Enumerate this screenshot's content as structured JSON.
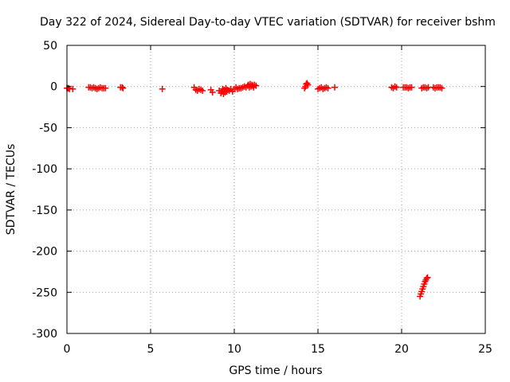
{
  "chart_data": {
    "type": "scatter",
    "title": "Day 322 of 2024, Sidereal Day-to-day VTEC variation (SDTVAR) for receiver bshm",
    "xlabel": "GPS time / hours",
    "ylabel": "SDTVAR / TECUs",
    "xlim": [
      0,
      25
    ],
    "ylim": [
      -300,
      50
    ],
    "xticks": [
      0,
      5,
      10,
      15,
      20,
      25
    ],
    "yticks": [
      50,
      0,
      -50,
      -100,
      -150,
      -200,
      -250,
      -300
    ],
    "xtick_labels": [
      "0",
      "5",
      "10",
      "15",
      "20",
      "25"
    ],
    "ytick_labels": [
      "50",
      "0",
      "-50",
      "-100",
      "-150",
      "-200",
      "-250",
      "-300"
    ],
    "grid": true,
    "marker": "plus",
    "series": [
      {
        "name": "SDTVAR",
        "color": "#ff0000",
        "x": [
          0.0,
          0.05,
          0.1,
          0.15,
          0.35,
          1.3,
          1.4,
          1.5,
          1.6,
          1.7,
          1.8,
          1.9,
          2.0,
          2.1,
          2.2,
          2.3,
          3.2,
          3.3,
          3.35,
          5.7,
          7.6,
          7.7,
          7.8,
          7.9,
          8.0,
          8.1,
          8.6,
          8.7,
          9.1,
          9.2,
          9.25,
          9.3,
          9.35,
          9.4,
          9.45,
          9.5,
          9.55,
          9.6,
          9.7,
          9.8,
          9.9,
          10.0,
          10.1,
          10.2,
          10.3,
          10.4,
          10.5,
          10.6,
          10.7,
          10.8,
          10.85,
          10.9,
          10.95,
          11.0,
          11.05,
          11.1,
          11.15,
          11.2,
          11.3,
          14.2,
          14.25,
          14.3,
          14.35,
          14.4,
          15.0,
          15.1,
          15.2,
          15.3,
          15.4,
          15.5,
          15.6,
          16.0,
          19.4,
          19.5,
          19.6,
          19.7,
          20.1,
          20.2,
          20.3,
          20.4,
          20.5,
          20.6,
          21.2,
          21.3,
          21.4,
          21.5,
          21.6,
          21.9,
          22.0,
          22.1,
          22.2,
          22.3,
          22.4,
          21.1,
          21.15,
          21.2,
          21.25,
          21.3,
          21.35,
          21.4,
          21.45,
          21.5,
          21.55
        ],
        "y": [
          -2,
          -2,
          -2,
          -3,
          -3,
          -1,
          -1,
          -2,
          -1,
          -2,
          -3,
          -2,
          -1,
          -2,
          -2,
          -2,
          -1,
          -1,
          -2,
          -3,
          -1,
          -4,
          -5,
          -3,
          -4,
          -5,
          -4,
          -7,
          -5,
          -8,
          -6,
          -3,
          -9,
          -4,
          -7,
          -2,
          -6,
          -4,
          -5,
          -3,
          -6,
          -3,
          -1,
          -3,
          -2,
          -2,
          -1,
          0,
          -1,
          1,
          2,
          -1,
          3,
          0,
          2,
          1,
          -1,
          2,
          1,
          -2,
          0,
          3,
          4,
          2,
          -3,
          -2,
          -1,
          -3,
          -2,
          -1,
          -2,
          -1,
          -1,
          -2,
          0,
          -1,
          -1,
          -1,
          -1,
          -2,
          -1,
          -1,
          -2,
          -1,
          -1,
          -2,
          -1,
          -1,
          -2,
          -1,
          -1,
          -1,
          -2,
          -255,
          -252,
          -249,
          -246,
          -243,
          -240,
          -237,
          -235,
          -233,
          -232
        ]
      }
    ]
  }
}
